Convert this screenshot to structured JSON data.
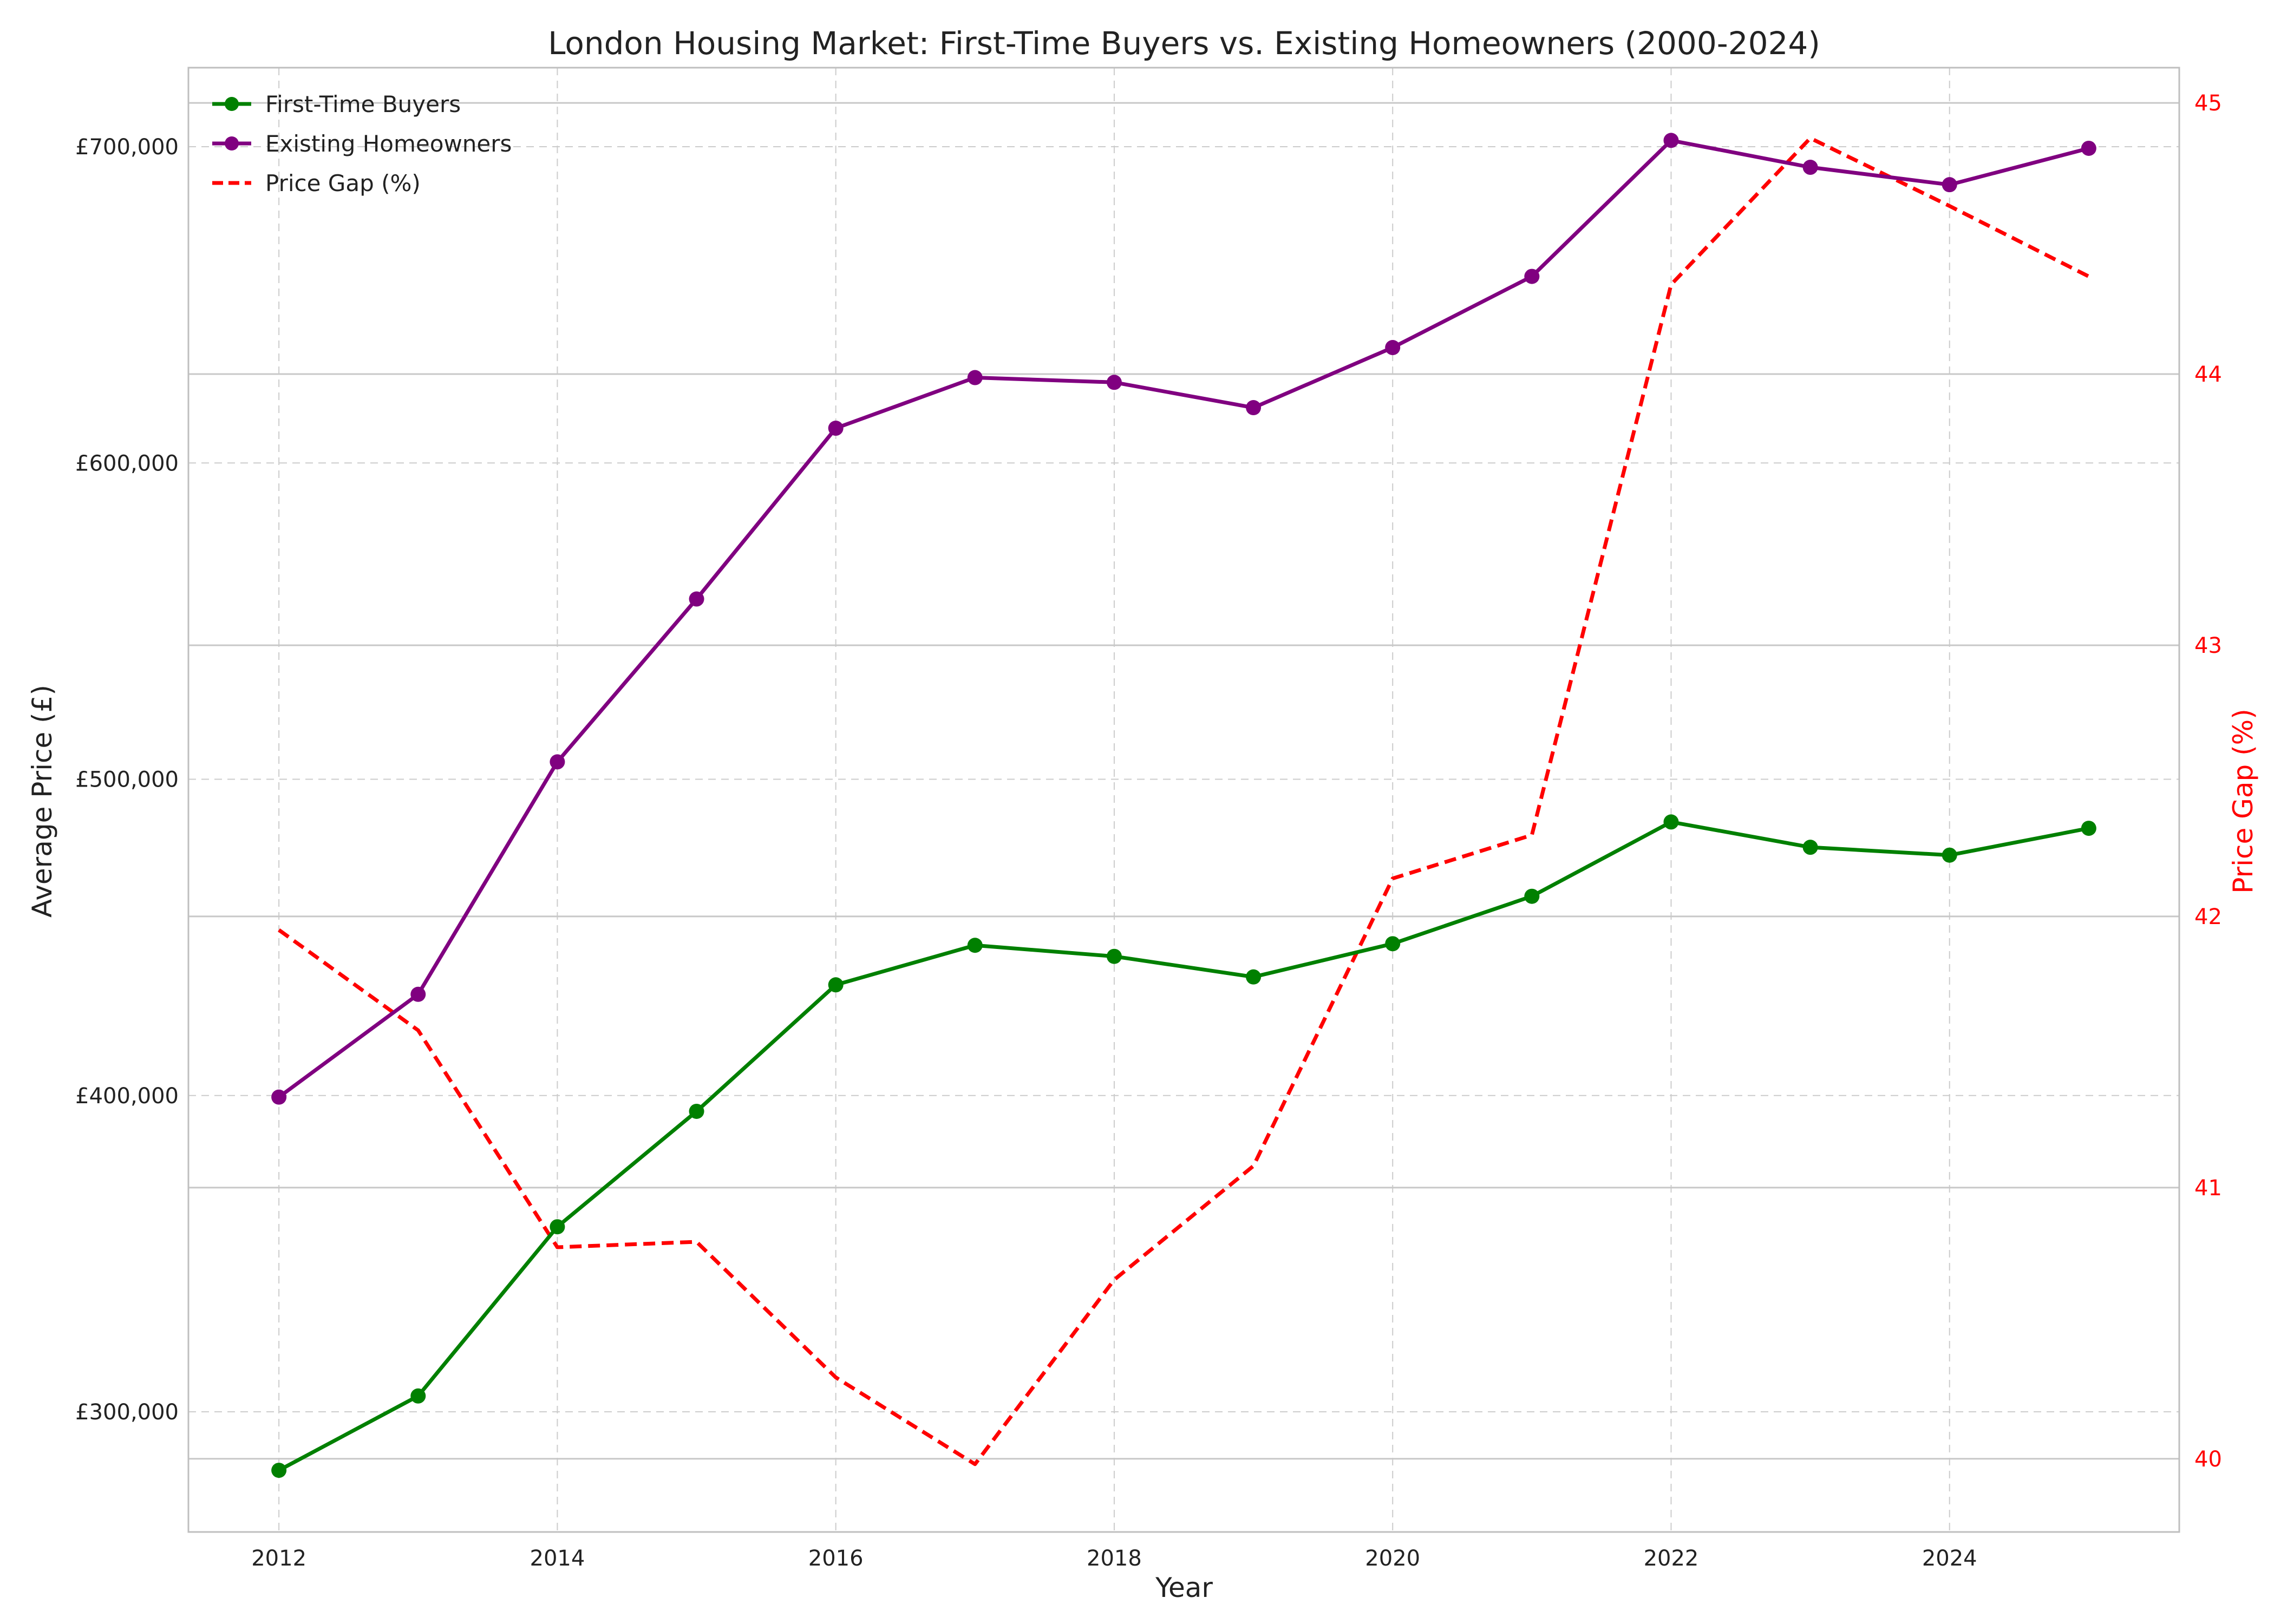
{
  "chart_data": {
    "type": "line",
    "title": "London Housing Market: First-Time Buyers vs. Existing Homeowners (2000-2024)",
    "xlabel": "Year",
    "ylabel": "Average Price (£)",
    "y2label": "Price Gap (%)",
    "x": [
      2012,
      2013,
      2014,
      2015,
      2016,
      2017,
      2018,
      2019,
      2020,
      2021,
      2022,
      2023,
      2024,
      2025
    ],
    "xlim": [
      2011.35,
      2025.65
    ],
    "ylim": [
      262000,
      725000
    ],
    "y2lim": [
      39.73,
      45.13
    ],
    "x_ticks": [
      2012,
      2014,
      2016,
      2018,
      2020,
      2022,
      2024
    ],
    "x_tick_labels": [
      "2012",
      "2014",
      "2016",
      "2018",
      "2020",
      "2022",
      "2024"
    ],
    "y_ticks": [
      300000,
      400000,
      500000,
      600000,
      700000
    ],
    "y_tick_labels": [
      "£300,000",
      "£400,000",
      "£500,000",
      "£600,000",
      "£700,000"
    ],
    "y2_ticks": [
      40,
      41,
      42,
      43,
      44,
      45
    ],
    "y2_tick_labels": [
      "40",
      "41",
      "42",
      "43",
      "44",
      "45"
    ],
    "grid": true,
    "legend_position": "top-left",
    "series": [
      {
        "name": "First-Time Buyers",
        "axis": "left",
        "color": "#008000",
        "style": "solid",
        "marker": "circle",
        "values": [
          281500,
          305000,
          358500,
          395000,
          435000,
          447500,
          444000,
          437500,
          448000,
          463000,
          486500,
          478500,
          476000,
          484500
        ]
      },
      {
        "name": "Existing Homeowners",
        "axis": "left",
        "color": "#800080",
        "style": "solid",
        "marker": "circle",
        "values": [
          399500,
          432000,
          505500,
          557000,
          611000,
          627000,
          625500,
          617500,
          636500,
          659000,
          702000,
          693500,
          688000,
          699500
        ]
      },
      {
        "name": "Price Gap (%)",
        "axis": "right",
        "color": "#ff0000",
        "style": "dashed",
        "marker": "none",
        "values": [
          41.95,
          41.58,
          40.78,
          40.8,
          40.3,
          39.98,
          40.66,
          41.08,
          42.14,
          42.3,
          44.33,
          44.87,
          44.62,
          44.36
        ]
      }
    ]
  }
}
